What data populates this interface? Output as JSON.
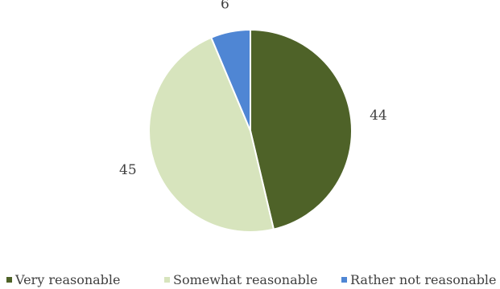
{
  "chart_data": {
    "type": "pie",
    "legend_position": "bottom",
    "slices": [
      {
        "label": "Very reasonable",
        "value": 44,
        "data_label": "44",
        "color": "#4e6228"
      },
      {
        "label": "Somewhat reasonable",
        "value": 45,
        "data_label": "45",
        "color": "#d7e4bd"
      },
      {
        "label": "Rather not reasonable",
        "value": 6,
        "data_label": "6",
        "color": "#4f86d4"
      }
    ]
  }
}
